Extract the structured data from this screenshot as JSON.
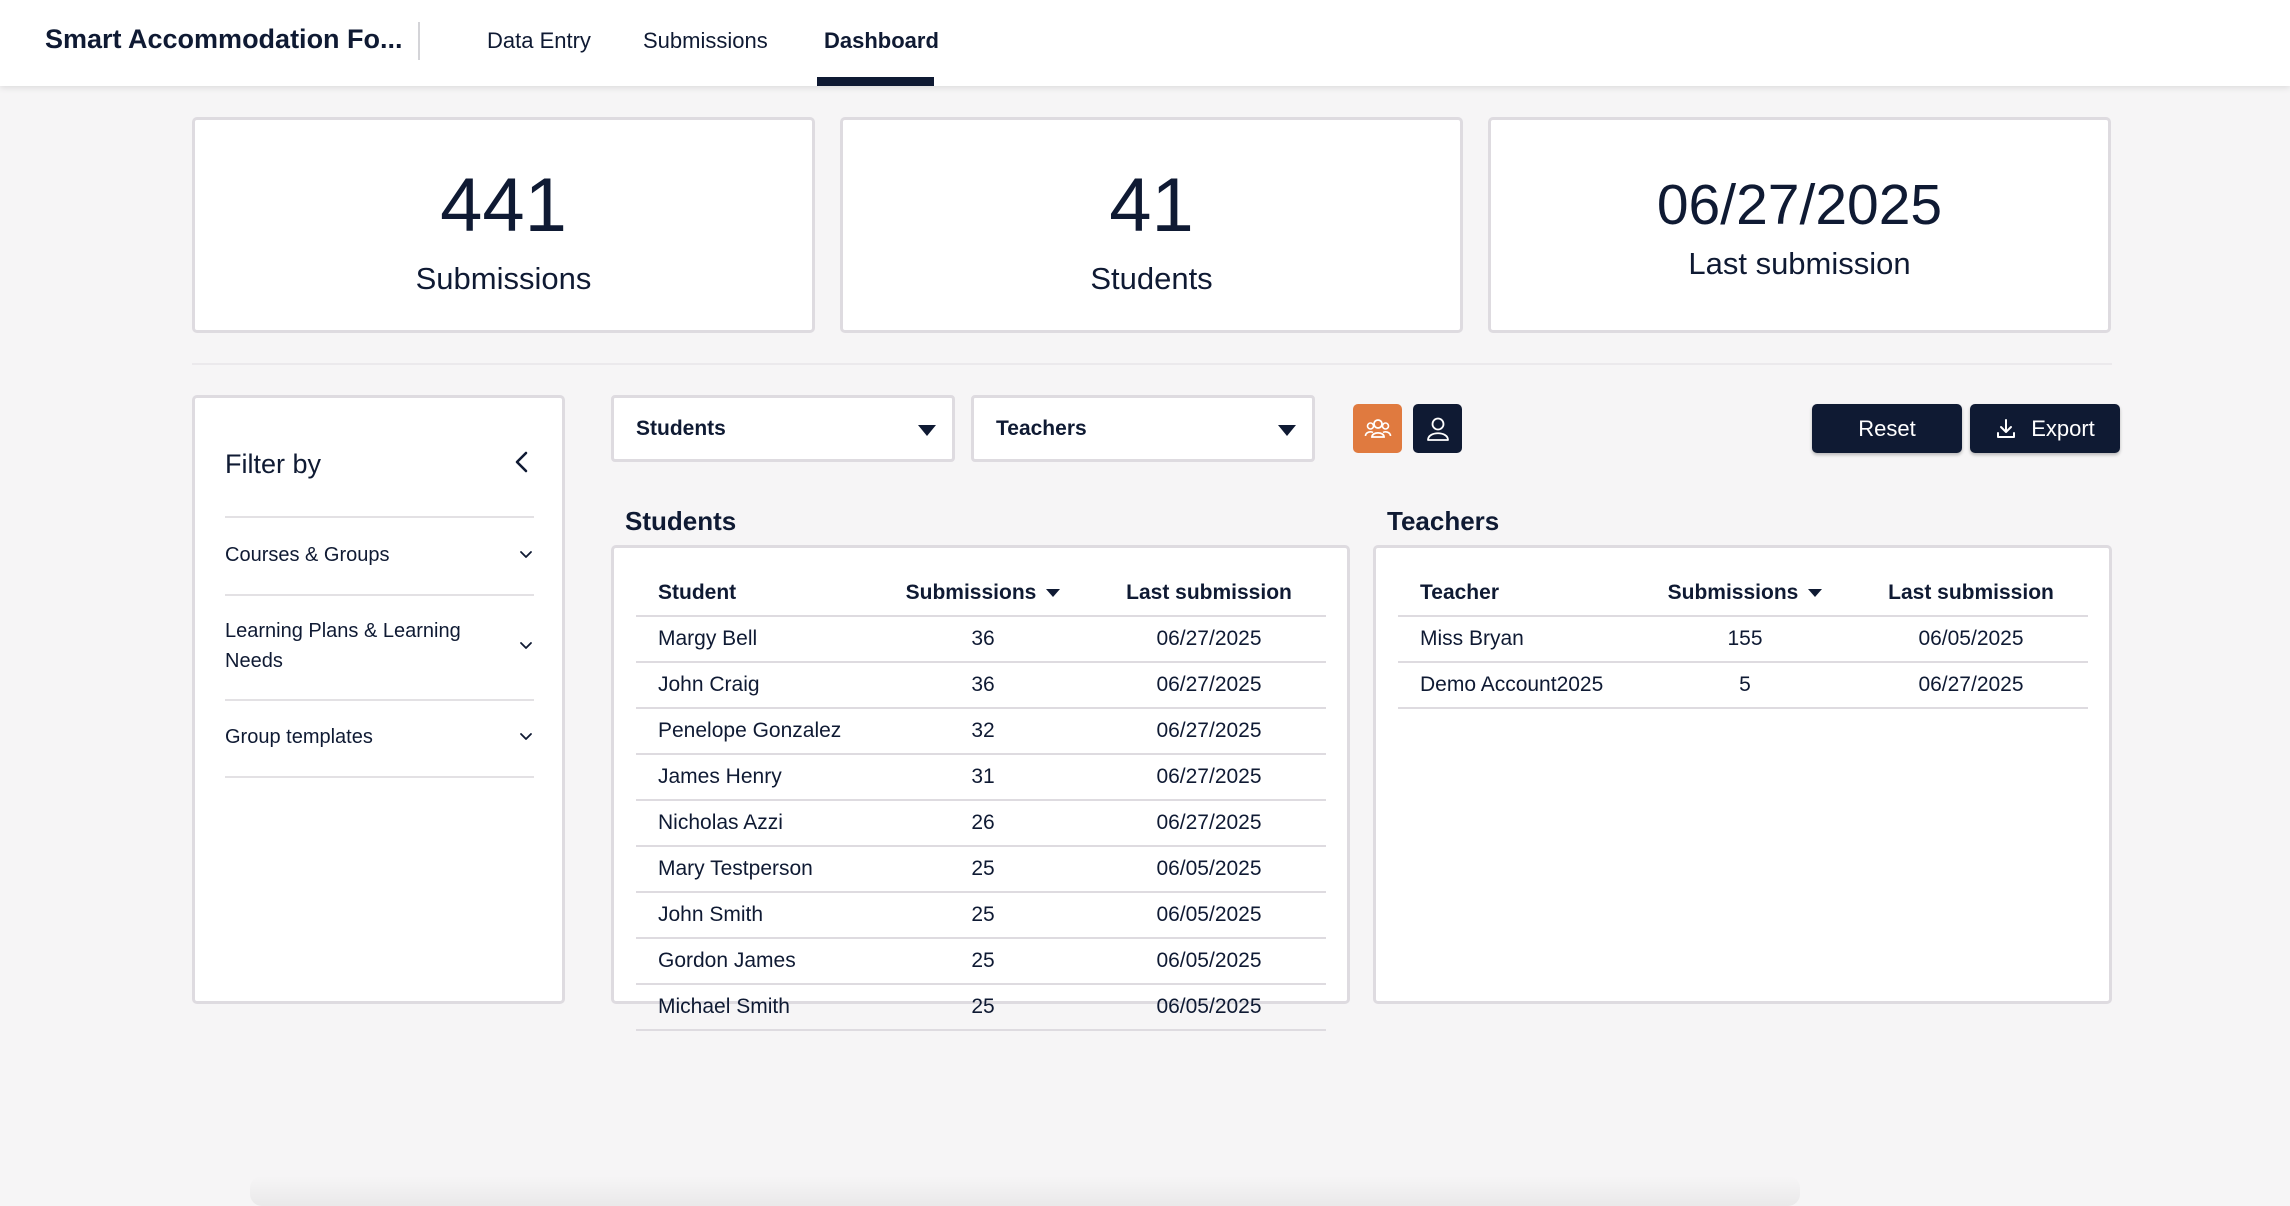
{
  "header": {
    "app_title": "Smart Accommodation Fo...",
    "tabs": [
      {
        "label": "Data Entry",
        "active": false
      },
      {
        "label": "Submissions",
        "active": false
      },
      {
        "label": "Dashboard",
        "active": true
      }
    ]
  },
  "stats": [
    {
      "value": "441",
      "label": "Submissions"
    },
    {
      "value": "41",
      "label": "Students"
    },
    {
      "value": "06/27/2025",
      "label": "Last submission"
    }
  ],
  "filter": {
    "title": "Filter by",
    "items": [
      {
        "label": "Courses & Groups"
      },
      {
        "label": "Learning Plans & Learning Needs"
      },
      {
        "label": "Group templates"
      }
    ]
  },
  "controls": {
    "students_dropdown": "Students",
    "teachers_dropdown": "Teachers",
    "reset_label": "Reset",
    "export_label": "Export",
    "group_icon": "group-icon",
    "person_icon": "person-icon"
  },
  "students_table": {
    "title": "Students",
    "headers": [
      "Student",
      "Submissions",
      "Last submission"
    ],
    "rows": [
      [
        "Margy Bell",
        "36",
        "06/27/2025"
      ],
      [
        "John Craig",
        "36",
        "06/27/2025"
      ],
      [
        "Penelope Gonzalez",
        "32",
        "06/27/2025"
      ],
      [
        "James Henry",
        "31",
        "06/27/2025"
      ],
      [
        "Nicholas Azzi",
        "26",
        "06/27/2025"
      ],
      [
        "Mary Testperson",
        "25",
        "06/05/2025"
      ],
      [
        "John Smith",
        "25",
        "06/05/2025"
      ],
      [
        "Gordon James",
        "25",
        "06/05/2025"
      ],
      [
        "Michael Smith",
        "25",
        "06/05/2025"
      ]
    ]
  },
  "teachers_table": {
    "title": "Teachers",
    "headers": [
      "Teacher",
      "Submissions",
      "Last submission"
    ],
    "rows": [
      [
        "Miss Bryan",
        "155",
        "06/05/2025"
      ],
      [
        "Demo Account2025",
        "5",
        "06/27/2025"
      ]
    ]
  },
  "colors": {
    "primary": "#0f1a33",
    "accent": "#e07a3f",
    "background": "#f6f5f6",
    "border": "#dedbe0"
  }
}
